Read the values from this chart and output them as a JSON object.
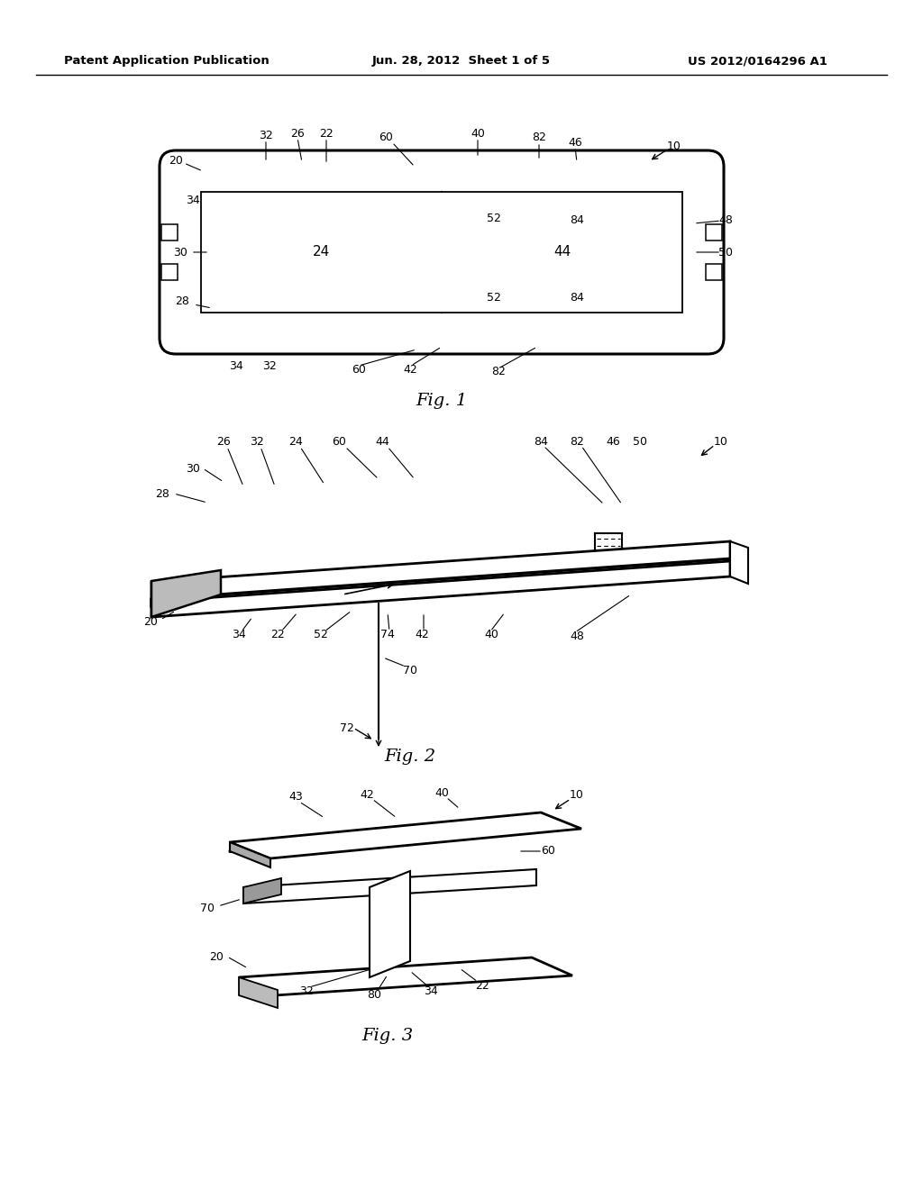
{
  "title_left": "Patent Application Publication",
  "title_center": "Jun. 28, 2012  Sheet 1 of 5",
  "title_right": "US 2012/0164296 A1",
  "background_color": "#ffffff",
  "line_color": "#000000",
  "fig1_caption": "Fig. 1",
  "fig2_caption": "Fig. 2",
  "fig3_caption": "Fig. 3"
}
